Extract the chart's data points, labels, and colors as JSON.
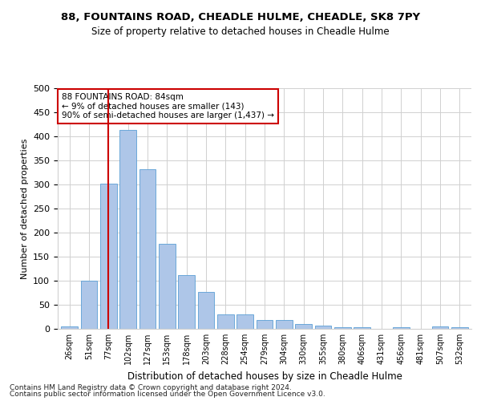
{
  "title1": "88, FOUNTAINS ROAD, CHEADLE HULME, CHEADLE, SK8 7PY",
  "title2": "Size of property relative to detached houses in Cheadle Hulme",
  "xlabel": "Distribution of detached houses by size in Cheadle Hulme",
  "ylabel": "Number of detached properties",
  "bar_labels": [
    "26sqm",
    "51sqm",
    "77sqm",
    "102sqm",
    "127sqm",
    "153sqm",
    "178sqm",
    "203sqm",
    "228sqm",
    "254sqm",
    "279sqm",
    "304sqm",
    "330sqm",
    "355sqm",
    "380sqm",
    "406sqm",
    "431sqm",
    "456sqm",
    "481sqm",
    "507sqm",
    "532sqm"
  ],
  "bar_values": [
    5,
    100,
    302,
    413,
    332,
    177,
    112,
    76,
    30,
    30,
    18,
    18,
    10,
    7,
    4,
    4,
    0,
    4,
    0,
    5,
    4
  ],
  "bar_color": "#aec6e8",
  "bar_edge_color": "#5a9fd4",
  "vline_x": 2,
  "vline_color": "#cc0000",
  "annotation_text_line1": "88 FOUNTAINS ROAD: 84sqm",
  "annotation_text_line2": "← 9% of detached houses are smaller (143)",
  "annotation_text_line3": "90% of semi-detached houses are larger (1,437) →",
  "annotation_box_color": "#ffffff",
  "annotation_box_edge": "#cc0000",
  "ylim": [
    0,
    500
  ],
  "yticks": [
    0,
    50,
    100,
    150,
    200,
    250,
    300,
    350,
    400,
    450,
    500
  ],
  "footer1": "Contains HM Land Registry data © Crown copyright and database right 2024.",
  "footer2": "Contains public sector information licensed under the Open Government Licence v3.0.",
  "bg_color": "#ffffff",
  "grid_color": "#d0d0d0"
}
